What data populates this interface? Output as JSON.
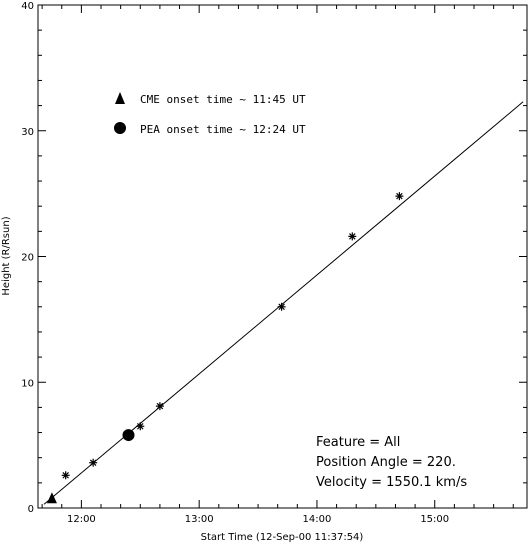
{
  "chart_data": {
    "type": "scatter",
    "xlabel": "Start Time (12-Sep-00 11:37:54)",
    "ylabel": "Height (R/Rsun)",
    "xlim": [
      "11:37:54",
      "15:47"
    ],
    "ylim": [
      0,
      40
    ],
    "x_ticks": [
      "12:00",
      "13:00",
      "14:00",
      "15:00"
    ],
    "y_ticks": [
      "0",
      "10",
      "20",
      "30",
      "40"
    ],
    "grid": false,
    "series": [
      {
        "marker": "asterisk",
        "x": [
          "11:52",
          "12:06",
          "12:30",
          "12:40",
          "13:42",
          "14:18",
          "14:42"
        ],
        "y": [
          2.6,
          3.6,
          6.5,
          8.1,
          16.0,
          21.6,
          24.8
        ]
      },
      {
        "marker": "line",
        "x": [
          "11:41",
          "15:45"
        ],
        "y": [
          0.3,
          32.3
        ]
      },
      {
        "marker": "triangle",
        "x": [
          "11:45"
        ],
        "y": [
          0.7
        ]
      },
      {
        "marker": "circle",
        "x": [
          "12:24"
        ],
        "y": [
          5.8
        ]
      }
    ],
    "legend": {
      "placement": "top-left",
      "entries": [
        {
          "marker": "triangle",
          "label": "CME onset time ~ 11:45 UT"
        },
        {
          "marker": "circle",
          "label": "PEA onset time ~ 12:24 UT"
        }
      ]
    },
    "annotations": {
      "placement": "bottom-right",
      "feature": "Feature = All",
      "position_angle": "Position Angle =   220.",
      "velocity": "Velocity =  1550.1 km/s"
    }
  }
}
